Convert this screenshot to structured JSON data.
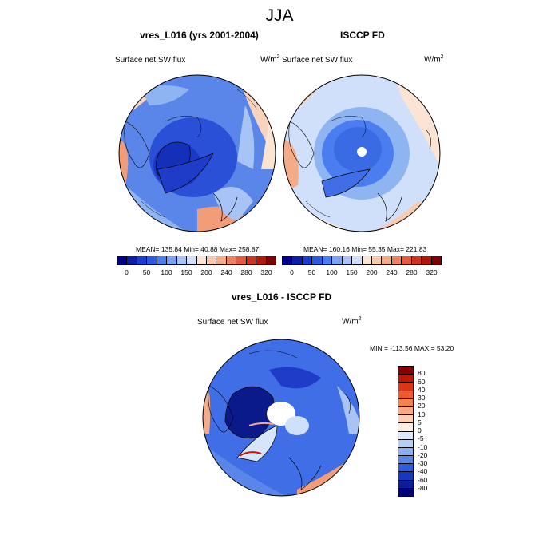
{
  "title": "JJA",
  "panels": [
    {
      "title": "vres_L016 (yrs 2001-2004)",
      "variable": "Surface net SW flux",
      "units_base": "W/m",
      "units_exp": "2",
      "stats": "MEAN= 135.84  Min=  40.88  Max= 258.87"
    },
    {
      "title": "ISCCP FD",
      "variable": "Surface net SW flux",
      "units_base": "W/m",
      "units_exp": "2",
      "stats": "MEAN= 160.16  Min=  55.35  Max= 221.83"
    },
    {
      "title": "vres_L016 - ISCCP FD",
      "variable": "Surface net SW flux",
      "units_base": "W/m",
      "units_exp": "2",
      "stats": "MIN = -113.56 MAX =  53.20"
    }
  ],
  "abs_colorbar": {
    "labels": [
      "0",
      "50",
      "100",
      "150",
      "200",
      "240",
      "280",
      "320"
    ],
    "colors": [
      "#00008a",
      "#0a1ea8",
      "#1a3bd0",
      "#2a5ce0",
      "#4a7ef0",
      "#7aa2f2",
      "#a8c4f6",
      "#d0e0fa",
      "#fbe4d4",
      "#f8cbb0",
      "#f4ab88",
      "#ee8260",
      "#e45a3a",
      "#d0341c",
      "#b01808",
      "#800000"
    ]
  },
  "diff_colorbar": {
    "labels": [
      "80",
      "60",
      "40",
      "30",
      "20",
      "10",
      "5",
      "0",
      "-5",
      "-10",
      "-20",
      "-30",
      "-40",
      "-60",
      "-80"
    ],
    "colors": [
      "#8a0000",
      "#c01808",
      "#e03410",
      "#f05a2a",
      "#f4834e",
      "#f7aa80",
      "#fbd0b4",
      "#fdeee4",
      "#dce8fa",
      "#b4cff5",
      "#8aaef0",
      "#5a86e8",
      "#2f5cdc",
      "#1438c0",
      "#0a1e9a",
      "#000078"
    ]
  },
  "map_colors": {
    "deep_blue": "#1e3cc8",
    "mid_blue": "#3f6ee6",
    "light_blue": "#8fb4f2",
    "pale_blue": "#cfe0fa",
    "pale_orange": "#f8d4bc",
    "orange": "#f29c78",
    "dark_navy": "#0a1a8a"
  }
}
